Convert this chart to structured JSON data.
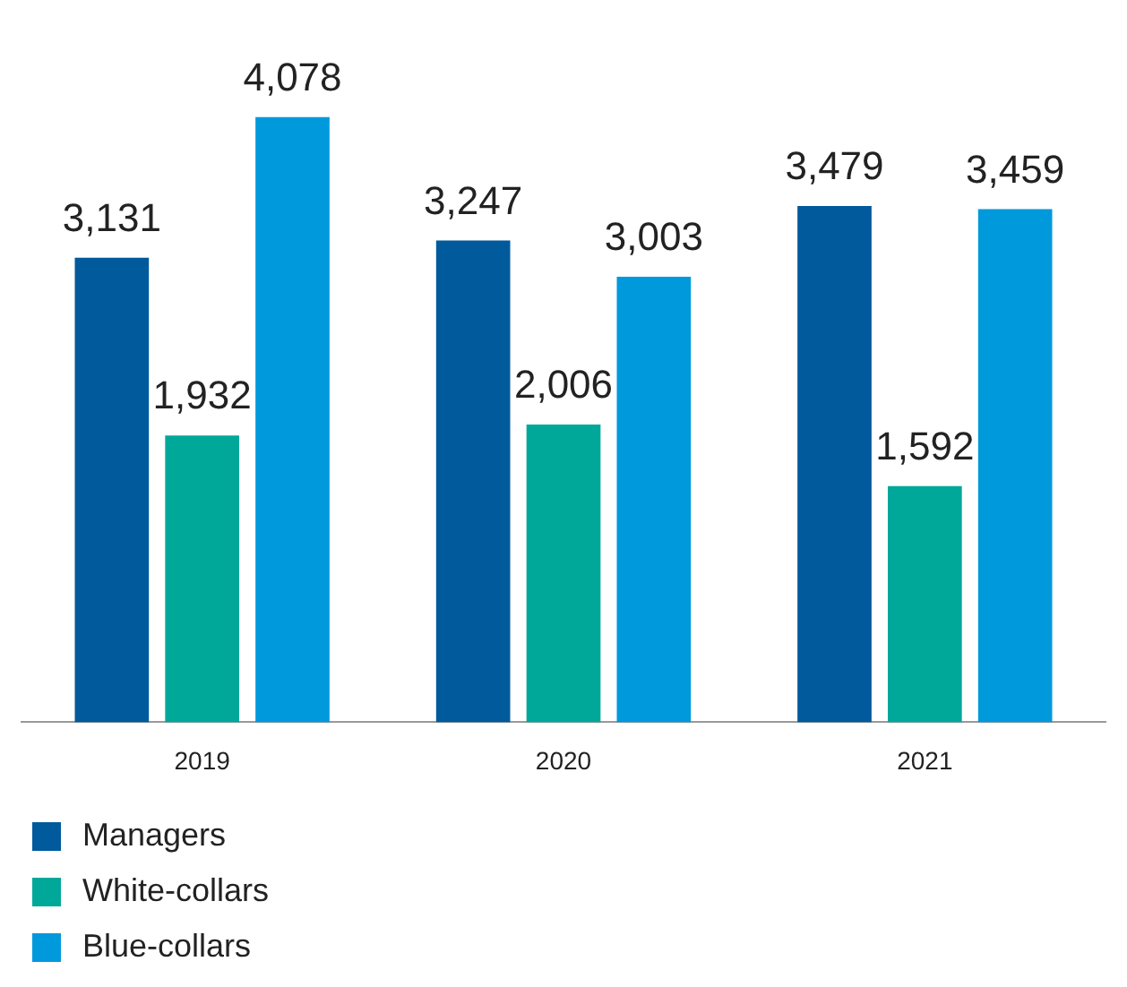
{
  "chart_data": {
    "type": "bar",
    "categories": [
      "2019",
      "2020",
      "2021"
    ],
    "series": [
      {
        "name": "Managers",
        "color": "#005a9c",
        "values": [
          3131,
          3247,
          3479
        ],
        "value_labels": [
          "3,131",
          "3,247",
          "3,479"
        ]
      },
      {
        "name": "White-collars",
        "color": "#00a89a",
        "values": [
          1932,
          2006,
          1592
        ],
        "value_labels": [
          "1,932",
          "2,006",
          "1,592"
        ]
      },
      {
        "name": "Blue-collars",
        "color": "#0099dc",
        "values": [
          4078,
          3003,
          3459
        ],
        "value_labels": [
          "4,078",
          "3,003",
          "3,459"
        ]
      }
    ],
    "legend": "bottom",
    "grid": false
  }
}
